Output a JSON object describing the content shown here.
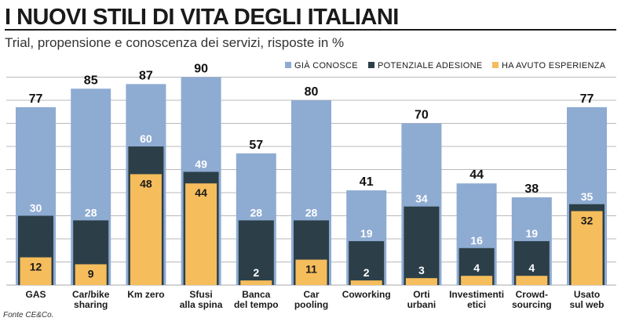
{
  "title": "I NUOVI STILI DI VITA DEGLI ITALIANI",
  "subtitle": "Trial, propensione e conoscenza dei servizi, risposte in %",
  "source": "Fonte CE&Co.",
  "colors": {
    "gia_conosce": "#8eabd2",
    "potenziale_adesione": "#2c3f48",
    "ha_avuto_esperienza": "#f5bd5c",
    "grid": "#b9b9b9",
    "title_rule": "#1a1a1a"
  },
  "chart_data": {
    "type": "bar",
    "title": "I NUOVI STILI DI VITA DEGLI ITALIANI",
    "subtitle": "Trial, propensione e conoscenza dei servizi, risposte in %",
    "ylim": [
      0,
      90
    ],
    "grid": true,
    "legend_position": "top-right",
    "categories": [
      [
        "GAS"
      ],
      [
        "Car/bike",
        "sharing"
      ],
      [
        "Km zero"
      ],
      [
        "Sfusi",
        "alla spina"
      ],
      [
        "Banca",
        "del tempo"
      ],
      [
        "Car",
        "pooling"
      ],
      [
        "Coworking"
      ],
      [
        "Orti",
        "urbani"
      ],
      [
        "Investimenti",
        "etici"
      ],
      [
        "Crowd-",
        "sourcing"
      ],
      [
        "Usato",
        "sul web"
      ]
    ],
    "series": [
      {
        "name": "GIÀ CONOSCE",
        "values": [
          77,
          85,
          87,
          90,
          57,
          80,
          41,
          70,
          44,
          38,
          77
        ]
      },
      {
        "name": "POTENZIALE ADESIONE",
        "values": [
          30,
          28,
          60,
          49,
          28,
          28,
          19,
          34,
          16,
          19,
          35
        ]
      },
      {
        "name": "HA AVUTO ESPERIENZA",
        "values": [
          12,
          9,
          48,
          44,
          2,
          11,
          2,
          3,
          4,
          4,
          32
        ]
      }
    ]
  }
}
